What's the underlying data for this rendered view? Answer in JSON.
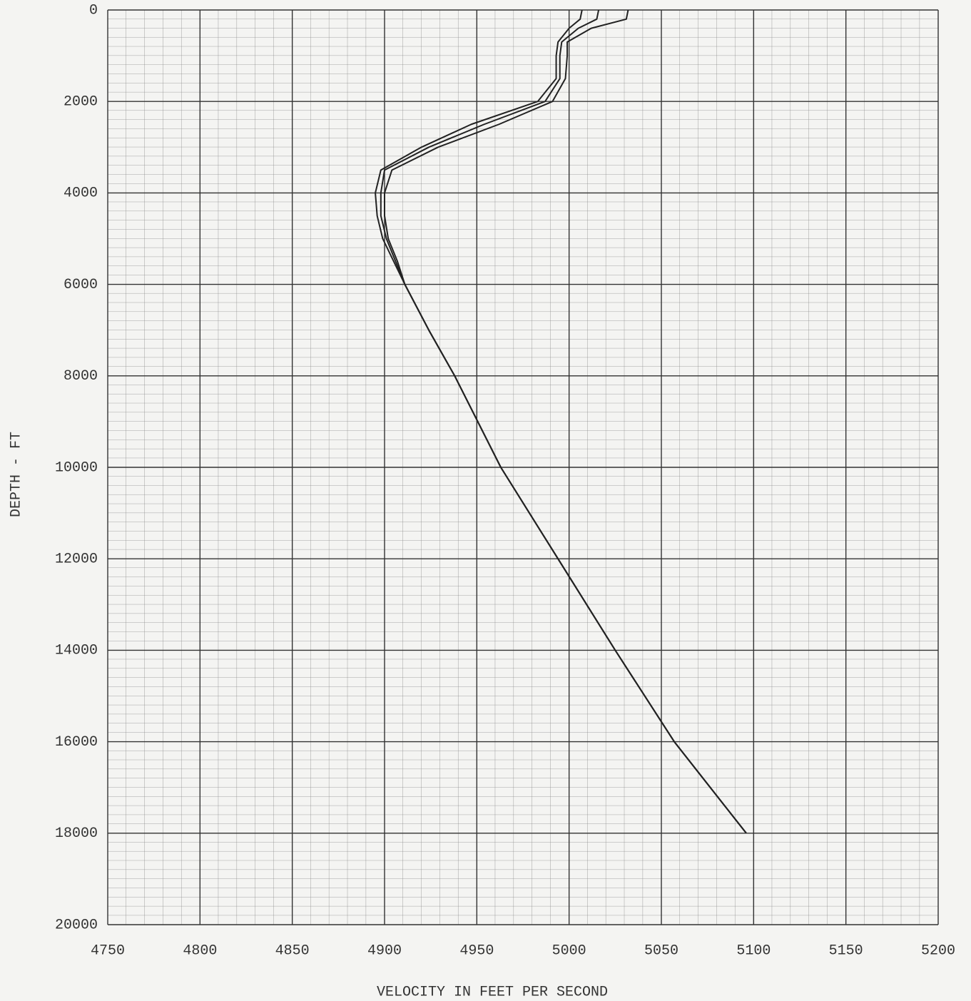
{
  "chart_data": {
    "type": "line",
    "xlabel": "VELOCITY IN FEET PER SECOND",
    "ylabel": "DEPTH - FT",
    "xlim": [
      4750,
      5200
    ],
    "xticks": [
      4750,
      4800,
      4850,
      4900,
      4950,
      5000,
      5050,
      5100,
      5150,
      5200
    ],
    "ylim": [
      20000,
      0
    ],
    "yticks": [
      0,
      2000,
      4000,
      6000,
      8000,
      10000,
      12000,
      14000,
      16000,
      18000,
      20000
    ],
    "grid": true,
    "series": [
      {
        "color": "#222222",
        "x": [
          5007,
          5006,
          5000,
          4994,
          4993,
          4993,
          4983,
          4947,
          4920,
          4898,
          4895,
          4896,
          4899,
          4905,
          4911,
          4924,
          4938,
          4963,
          4994,
          5025,
          5057,
          5096
        ],
        "values": [
          0,
          200,
          400,
          700,
          1000,
          1500,
          2000,
          2500,
          3000,
          3500,
          4000,
          4500,
          5000,
          5500,
          6000,
          7000,
          8000,
          10000,
          12000,
          14000,
          16000,
          18000
        ]
      },
      {
        "color": "#222222",
        "x": [
          5016,
          5015,
          5005,
          4996,
          4995,
          4995,
          4987,
          4954,
          4924,
          4900,
          4898,
          4898,
          4901,
          4906,
          4911,
          4924,
          4938,
          4963,
          4994,
          5025,
          5057,
          5096
        ],
        "values": [
          0,
          200,
          400,
          700,
          1000,
          1500,
          2000,
          2500,
          3000,
          3500,
          4000,
          4500,
          5000,
          5500,
          6000,
          7000,
          8000,
          10000,
          12000,
          14000,
          16000,
          18000
        ]
      },
      {
        "color": "#222222",
        "x": [
          5032,
          5031,
          5012,
          4999,
          4999,
          4998,
          4991,
          4962,
          4929,
          4904,
          4900,
          4900,
          4902,
          4907,
          4911,
          4924,
          4938,
          4963,
          4994,
          5025,
          5057,
          5096
        ],
        "values": [
          0,
          200,
          400,
          700,
          1000,
          1500,
          2000,
          2500,
          3000,
          3500,
          4000,
          4500,
          5000,
          5500,
          6000,
          7000,
          8000,
          10000,
          12000,
          14000,
          16000,
          18000
        ]
      }
    ]
  }
}
